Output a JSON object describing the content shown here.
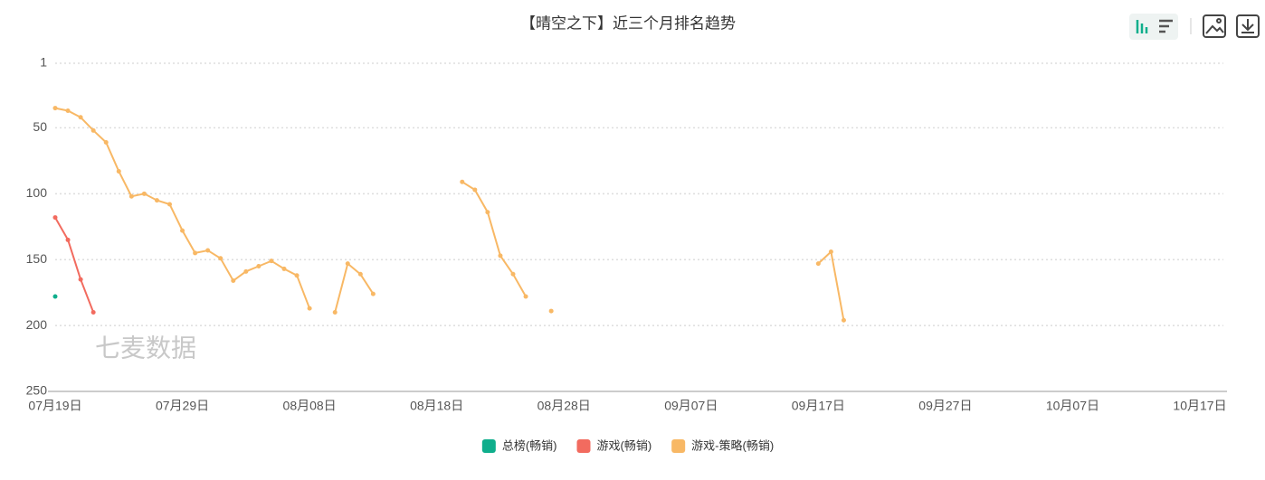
{
  "chart_data": {
    "type": "line",
    "title": "【晴空之下】近三个月排名趋势",
    "watermark": "七麦数据",
    "categories": [
      "07月19日",
      null,
      null,
      null,
      null,
      null,
      null,
      null,
      null,
      null,
      "07月29日",
      null,
      null,
      null,
      null,
      null,
      null,
      null,
      null,
      null,
      "08月08日",
      null,
      null,
      null,
      null,
      null,
      null,
      null,
      null,
      null,
      "08月18日",
      null,
      null,
      null,
      null,
      null,
      null,
      null,
      null,
      null,
      "08月28日",
      null,
      null,
      null,
      null,
      null,
      null,
      null,
      null,
      null,
      "09月07日",
      null,
      null,
      null,
      null,
      null,
      null,
      null,
      null,
      null,
      "09月17日",
      null,
      null,
      null,
      null,
      null,
      null,
      null,
      null,
      null,
      "09月27日",
      null,
      null,
      null,
      null,
      null,
      null,
      null,
      null,
      null,
      "10月07日",
      null,
      null,
      null,
      null,
      null,
      null,
      null,
      null,
      null,
      "10月17日"
    ],
    "series": [
      {
        "name": "总榜(畅销)",
        "color": "#0fae8c",
        "values": [
          178,
          null,
          null,
          null,
          null,
          null,
          null,
          null,
          null,
          null,
          null,
          null,
          null,
          null,
          null,
          null,
          null,
          null,
          null,
          null,
          null,
          null,
          null,
          null,
          null,
          null,
          null,
          null,
          null,
          null,
          null,
          null,
          null,
          null,
          null,
          null,
          null,
          null,
          null,
          null,
          null,
          null,
          null,
          null,
          null,
          null,
          null,
          null,
          null,
          null,
          null,
          null,
          null,
          null,
          null,
          null,
          null,
          null,
          null,
          null,
          null,
          null,
          null,
          null,
          null,
          null,
          null,
          null,
          null,
          null,
          null,
          null,
          null,
          null,
          null,
          null,
          null,
          null,
          null,
          null,
          null,
          null,
          null,
          null,
          null,
          null,
          null,
          null,
          null,
          null,
          null
        ]
      },
      {
        "name": "游戏(畅销)",
        "color": "#f26b5f",
        "values": [
          118,
          135,
          165,
          190,
          null,
          null,
          null,
          null,
          null,
          null,
          null,
          null,
          null,
          null,
          null,
          null,
          null,
          null,
          null,
          null,
          null,
          null,
          null,
          null,
          null,
          null,
          null,
          null,
          null,
          null,
          null,
          null,
          null,
          null,
          null,
          null,
          null,
          null,
          null,
          null,
          null,
          null,
          null,
          null,
          null,
          null,
          null,
          null,
          null,
          null,
          null,
          null,
          null,
          null,
          null,
          null,
          null,
          null,
          null,
          null,
          null,
          null,
          null,
          null,
          null,
          null,
          null,
          null,
          null,
          null,
          null,
          null,
          null,
          null,
          null,
          null,
          null,
          null,
          null,
          null,
          null,
          null,
          null,
          null,
          null,
          null,
          null,
          null,
          null,
          null,
          null
        ]
      },
      {
        "name": "游戏-策略(畅销)",
        "color": "#f8b865",
        "values": [
          35,
          37,
          42,
          52,
          61,
          83,
          102,
          100,
          105,
          108,
          128,
          145,
          143,
          149,
          166,
          159,
          155,
          151,
          157,
          162,
          187,
          null,
          190,
          153,
          161,
          176,
          null,
          null,
          null,
          null,
          null,
          null,
          91,
          97,
          114,
          147,
          161,
          178,
          null,
          189,
          null,
          null,
          null,
          null,
          null,
          null,
          null,
          null,
          null,
          null,
          null,
          null,
          null,
          null,
          null,
          null,
          null,
          null,
          null,
          null,
          153,
          144,
          196,
          null,
          null,
          null,
          null,
          null,
          null,
          null,
          null,
          null,
          null,
          null,
          null,
          null,
          null,
          null,
          null,
          null,
          null,
          null,
          null,
          null,
          null,
          null,
          null,
          null,
          null,
          null,
          null
        ]
      }
    ],
    "ylim": [
      1,
      250
    ],
    "y_inverted": true,
    "yticks": [
      1,
      50,
      100,
      150,
      200,
      250
    ],
    "grid": true,
    "legend": "bottom"
  }
}
